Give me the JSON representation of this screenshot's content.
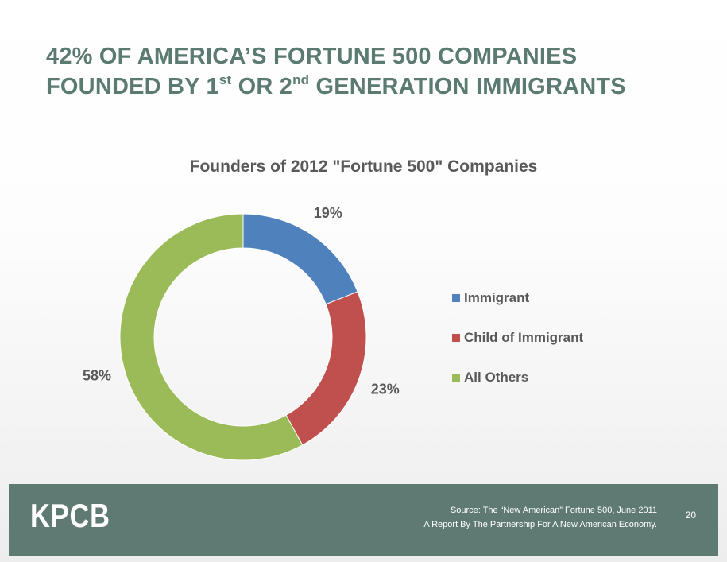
{
  "slide": {
    "title_line1": "42% OF AMERICA’S FORTUNE 500 COMPANIES",
    "title_line2_part1": "FOUNDED BY 1",
    "title_line2_sup1": "st",
    "title_line2_part2": " OR 2",
    "title_line2_sup2": "nd",
    "title_line2_part3": " GENERATION IMMIGRANTS"
  },
  "chart_data": {
    "type": "pie",
    "title": "Founders of 2012 \"Fortune 500\" Companies",
    "categories": [
      "Immigrant",
      "Child of Immigrant",
      "All Others"
    ],
    "values": [
      19,
      23,
      58
    ],
    "labels": [
      "19%",
      "23%",
      "58%"
    ],
    "colors": [
      "#4f81bd",
      "#c0504d",
      "#9bbb59"
    ],
    "donut": true,
    "legend_position": "right"
  },
  "footer": {
    "logo": "KPCB",
    "source_line1": "Source: The “New American” Fortune 500, June 2011",
    "source_line2": "A Report By The Partnership For A New American Economy.",
    "page_number": "20"
  }
}
